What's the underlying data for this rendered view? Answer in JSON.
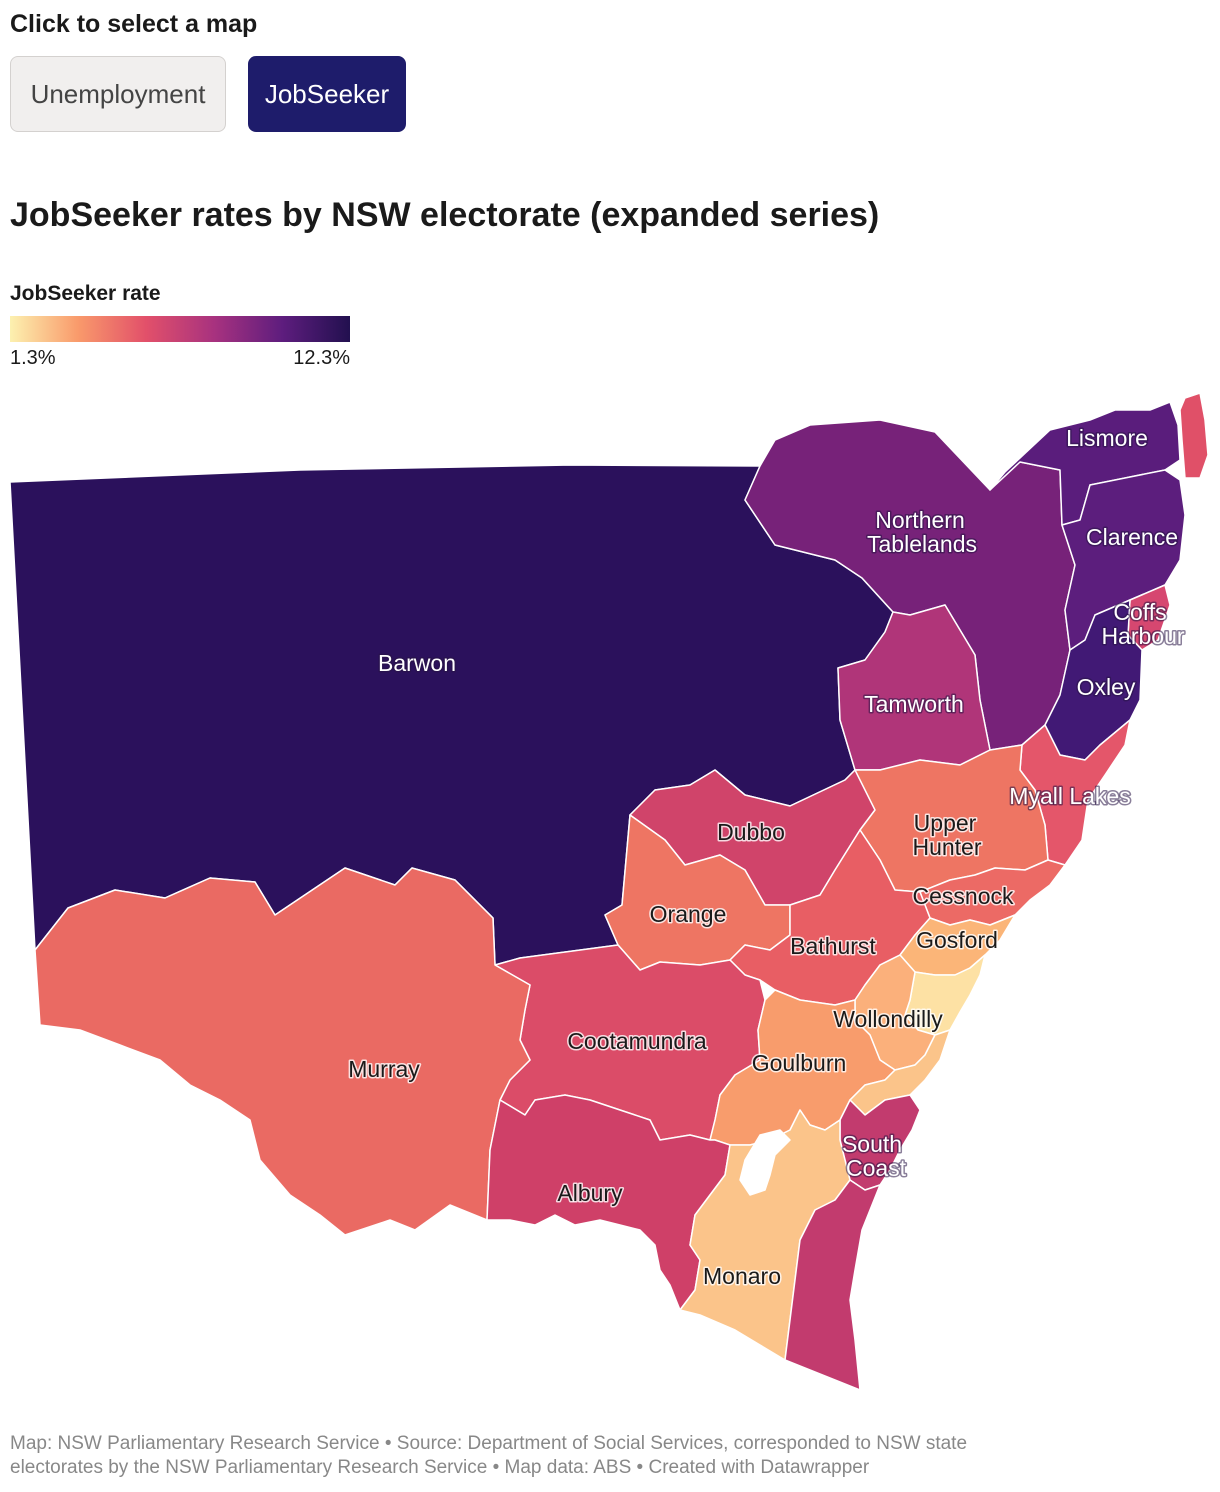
{
  "selector": {
    "label": "Click to select a map",
    "options": [
      "Unemployment",
      "JobSeeker"
    ],
    "selected": "JobSeeker"
  },
  "title": "JobSeeker rates by NSW electorate (expanded series)",
  "legend": {
    "title": "JobSeeker rate",
    "min_label": "1.3%",
    "max_label": "12.3%",
    "min": 1.3,
    "max": 12.3,
    "colors": [
      "#fcf1b0",
      "#f99a6b",
      "#e2506a",
      "#a8327f",
      "#5e1d7e",
      "#22104f"
    ]
  },
  "map": {
    "labels": {
      "lismore": "Lismore",
      "northern_tablelands_1": "Northern",
      "northern_tablelands_2": "Tablelands",
      "clarence": "Clarence",
      "coffs_1": "Coffs",
      "coffs_2": "Harbour",
      "barwon": "Barwon",
      "oxley": "Oxley",
      "tamworth": "Tamworth",
      "myall": "Myall Lakes",
      "dubbo": "Dubbo",
      "upper_hunter_1": "Upper",
      "upper_hunter_2": "Hunter",
      "cessnock": "Cessnock",
      "orange": "Orange",
      "gosford": "Gosford",
      "bathurst": "Bathurst",
      "wollondilly": "Wollondilly",
      "cootamundra": "Cootamundra",
      "murray": "Murray",
      "goulburn": "Goulburn",
      "south_coast_1": "South",
      "south_coast_2": "Coast",
      "albury": "Albury",
      "monaro": "Monaro"
    },
    "region_colors": {
      "barwon": "#2b115c",
      "northern_tablelands": "#772279",
      "lismore": "#5a1d7c",
      "clarence": "#5c1e7d",
      "oxley": "#411975",
      "coffs_harbour": "#d64770",
      "tweed": "#e05068",
      "tamworth": "#b03579",
      "myall_lakes": "#e4566a",
      "dubbo": "#d0446a",
      "upper_hunter": "#ee7563",
      "orange": "#ee7563",
      "bathurst": "#e85e64",
      "cessnock": "#ec6a65",
      "cootamundra": "#db4c68",
      "murray": "#ea6a63",
      "goulburn": "#f89c6c",
      "albury": "#cf4068",
      "south_coast": "#c23b6e",
      "bega": "#c23b6e",
      "monaro": "#fbc48a",
      "kiama": "#fbc48a",
      "wollondilly": "#fbb07b",
      "gosford": "#fbb578",
      "sydney": "#fde1a4"
    }
  },
  "footer": {
    "line1": "Map: NSW Parliamentary Research Service • Source: Department of Social Services, corresponded to NSW state",
    "line2": "electorates by the NSW Parliamentary Research Service • Map data: ABS • Created with Datawrapper"
  }
}
